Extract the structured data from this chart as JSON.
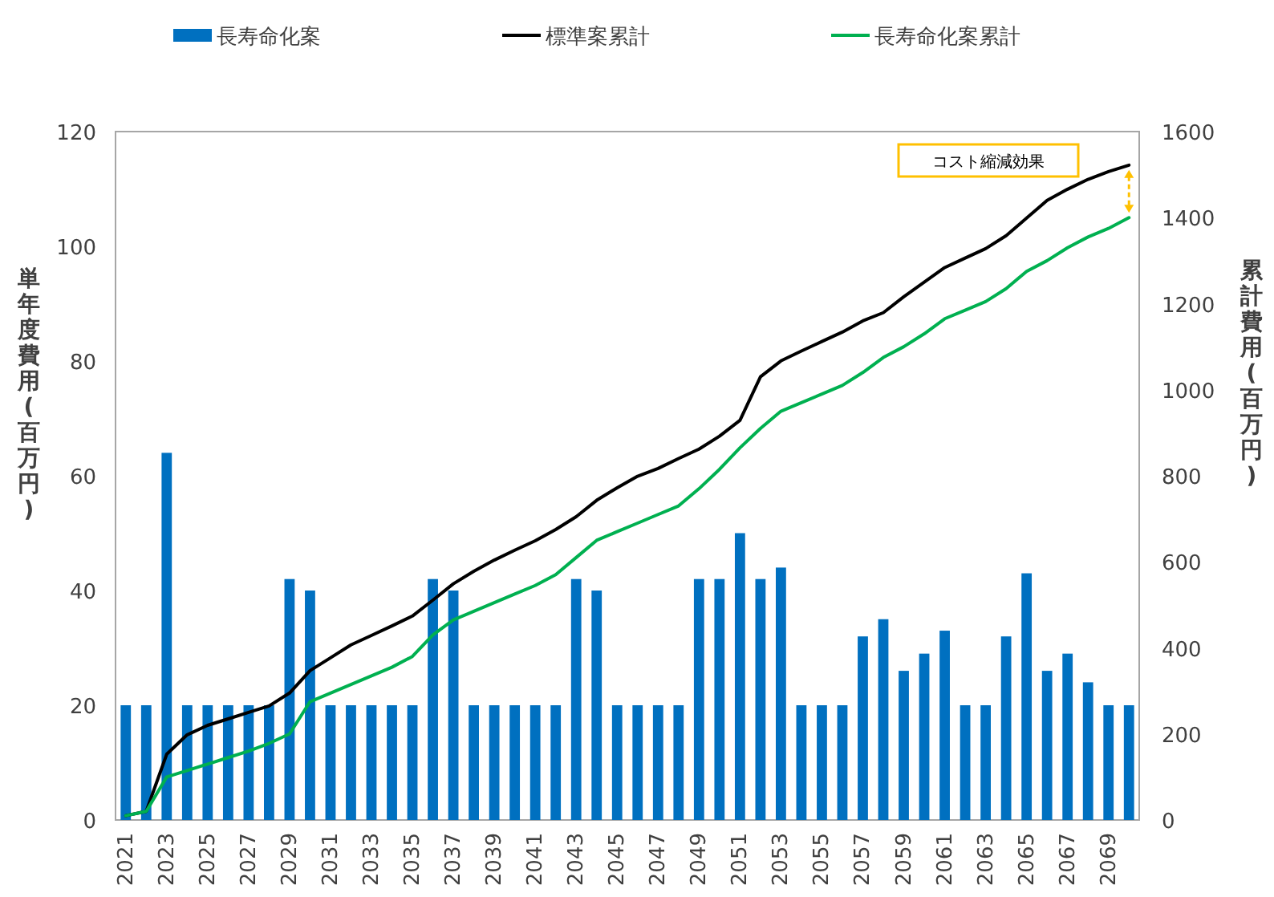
{
  "chart_data": {
    "type": "bar",
    "categories": [
      "2021",
      null,
      "2023",
      null,
      "2025",
      null,
      "2027",
      null,
      "2029",
      null,
      "2031",
      null,
      "2033",
      null,
      "2035",
      null,
      "2037",
      null,
      "2039",
      null,
      "2041",
      null,
      "2043",
      null,
      "2045",
      null,
      "2047",
      null,
      "2049",
      null,
      "2051",
      null,
      "2053",
      null,
      "2055",
      null,
      "2057",
      null,
      "2059",
      null,
      "2061",
      null,
      "2063",
      null,
      "2065",
      null,
      "2067",
      null,
      "2069",
      null
    ],
    "series": [
      {
        "name": "長寿命化案",
        "color": "#0070c0",
        "values": [
          20,
          20,
          64,
          20,
          20,
          20,
          20,
          20,
          42,
          40,
          20,
          20,
          20,
          20,
          20,
          42,
          40,
          20,
          20,
          20,
          20,
          20,
          42,
          40,
          20,
          20,
          20,
          20,
          42,
          42,
          50,
          42,
          44,
          20,
          20,
          20,
          32,
          35,
          26,
          29,
          33,
          20,
          20,
          32,
          43,
          26,
          29,
          24,
          20,
          20
        ]
      },
      {
        "name": "標準案累計",
        "type": "line",
        "axis": "y2",
        "color": "#000000",
        "values": [
          10,
          20,
          153,
          198,
          220,
          235,
          250,
          265,
          295,
          347,
          377,
          407,
          429,
          451,
          474,
          511,
          549,
          578,
          604,
          627,
          649,
          675,
          705,
          743,
          772,
          799,
          817,
          840,
          862,
          892,
          929,
          1030,
          1067,
          1090,
          1112,
          1134,
          1160,
          1179,
          1216,
          1250,
          1284,
          1306,
          1328,
          1358,
          1399,
          1440,
          1466,
          1489,
          1507,
          1522
        ]
      },
      {
        "name": "長寿命化案累計",
        "type": "line",
        "axis": "y2",
        "color": "#00b050",
        "values": [
          10,
          20,
          100,
          115,
          130,
          145,
          160,
          178,
          200,
          275,
          295,
          315,
          335,
          355,
          380,
          430,
          465,
          485,
          505,
          525,
          545,
          570,
          610,
          650,
          670,
          690,
          710,
          730,
          770,
          815,
          865,
          910,
          950,
          970,
          990,
          1010,
          1040,
          1075,
          1100,
          1130,
          1165,
          1185,
          1205,
          1235,
          1275,
          1300,
          1330,
          1355,
          1375,
          1400
        ]
      }
    ],
    "ylabel": "単年度費用(百万円)",
    "y2label": "累計費用(百万円)",
    "ylim": [
      0,
      120
    ],
    "yticks": [
      0,
      20,
      40,
      60,
      80,
      100,
      120
    ],
    "y2lim": [
      0,
      1600
    ],
    "y2ticks": [
      0,
      200,
      400,
      600,
      800,
      1000,
      1200,
      1400,
      1600
    ],
    "annotations": [
      "コスト縮減効果"
    ],
    "legend": "top"
  }
}
